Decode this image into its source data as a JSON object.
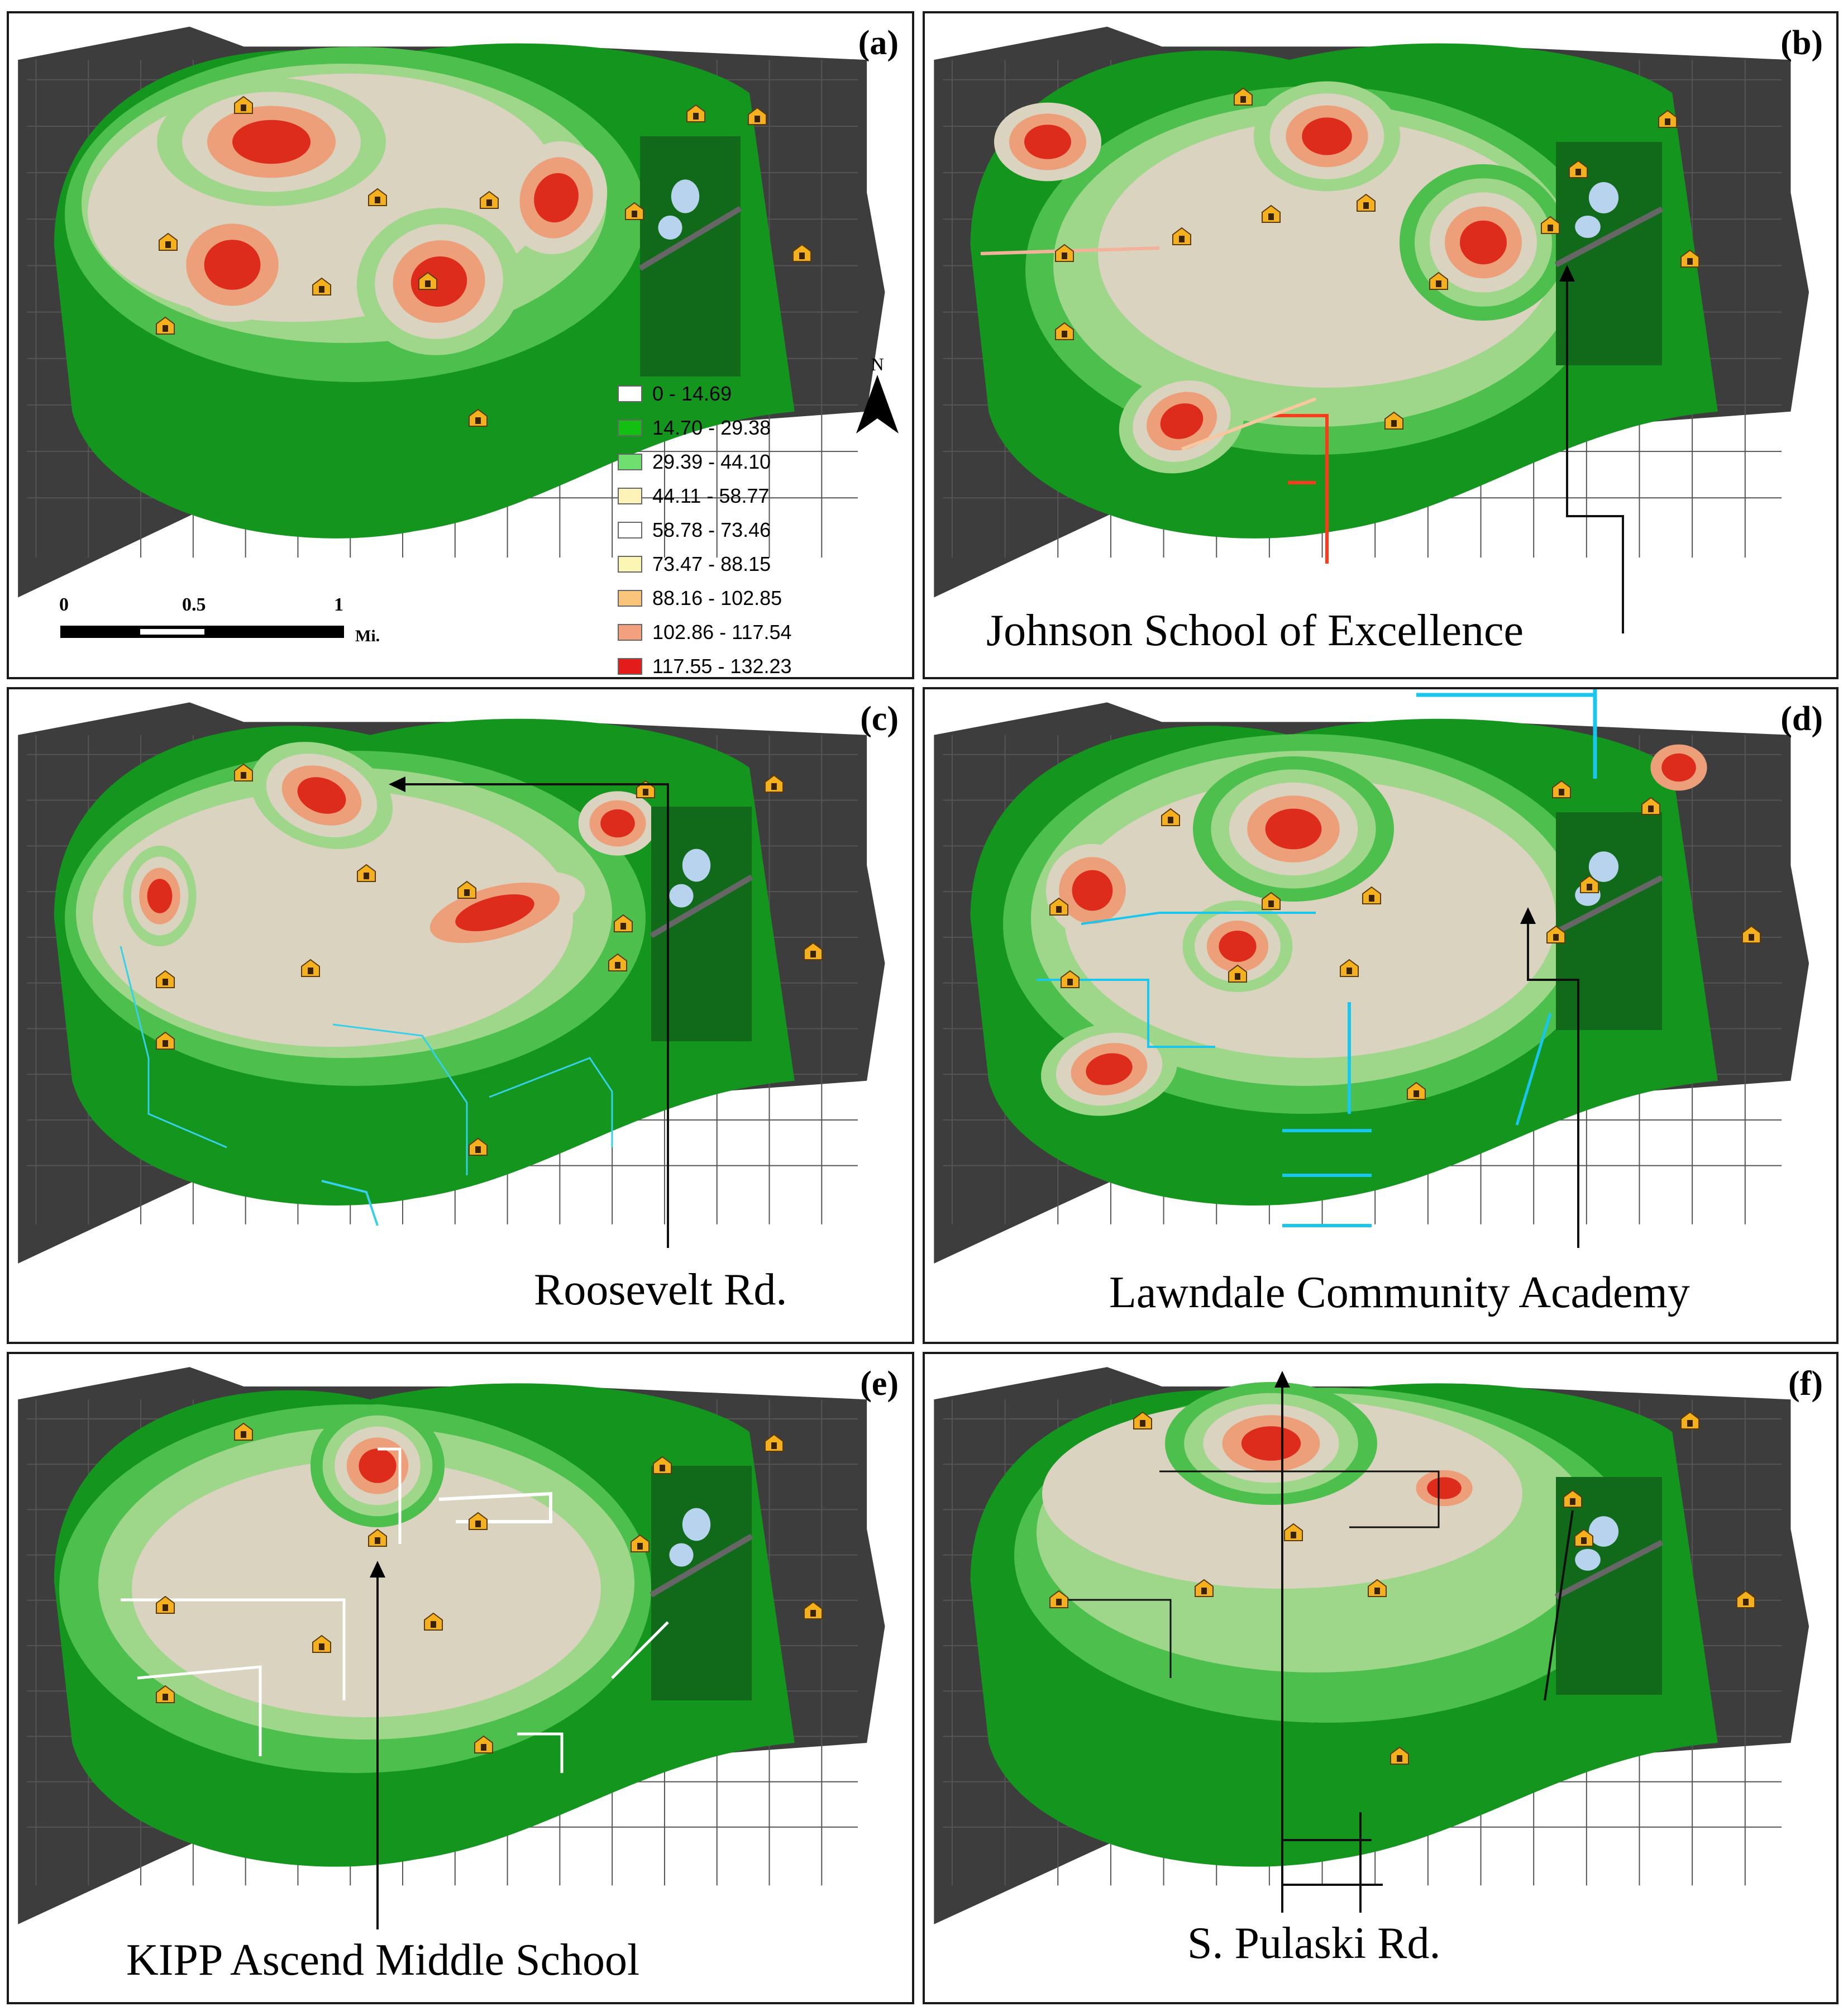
{
  "panels": {
    "a": {
      "label": "(a)",
      "caption": ""
    },
    "b": {
      "label": "(b)",
      "caption": "Johnson School of Excellence"
    },
    "c": {
      "label": "(c)",
      "caption": "Roosevelt Rd."
    },
    "d": {
      "label": "(d)",
      "caption": "Lawndale Community Academy"
    },
    "e": {
      "label": "(e)",
      "caption": "KIPP Ascend Middle School"
    },
    "f": {
      "label": "(f)",
      "caption": "S. Pulaski Rd."
    }
  },
  "legend": {
    "classes": [
      {
        "label": "0 - 14.69",
        "color": "#ffffff"
      },
      {
        "label": "14.70 - 29.38",
        "color": "#12c012"
      },
      {
        "label": "29.39 - 44.10",
        "color": "#6fe06f"
      },
      {
        "label": "44.11 - 58.77",
        "color": "#fdf3b8"
      },
      {
        "label": "58.78 - 73.46",
        "color": "#ffffff"
      },
      {
        "label": "73.47 - 88.15",
        "color": "#fbf6b4"
      },
      {
        "label": "88.16 - 102.85",
        "color": "#f9c57a"
      },
      {
        "label": "102.86 - 117.54",
        "color": "#f3a080"
      },
      {
        "label": "117.55 - 132.23",
        "color": "#e41b1b"
      }
    ]
  },
  "scale_bar": {
    "ticks": [
      "0",
      "0.5",
      "1"
    ],
    "unit": "Mi."
  },
  "north_arrow": {
    "label": "N"
  },
  "colors": {
    "background_gray": "#3d3d3d",
    "green_dark": "#14961e",
    "green_mid": "#4cbf4c",
    "green_light": "#9ed78a",
    "beige": "#d9d3bf",
    "orange": "#ec9f78",
    "red": "#dd2c1c",
    "park_dark": "#106a1a",
    "lake": "#b7d3ee",
    "school_icon": "#f5b01e",
    "route_b": "#ff3a1a",
    "route_c": "#35d1e8",
    "route_d": "#19c6ee",
    "route_e": "#ffffff",
    "route_f": "#111111"
  }
}
